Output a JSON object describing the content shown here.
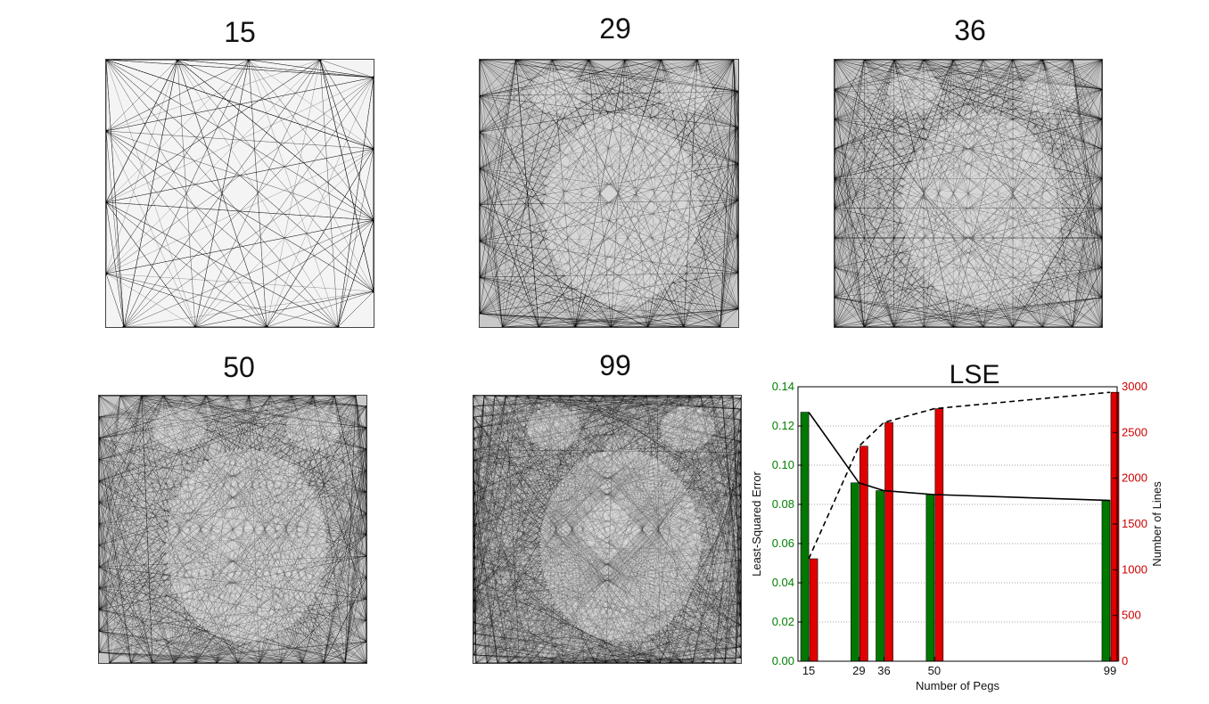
{
  "panels": [
    {
      "title": "15",
      "pegs": 15
    },
    {
      "title": "29",
      "pegs": 29
    },
    {
      "title": "36",
      "pegs": 36
    },
    {
      "title": "50",
      "pegs": 50
    },
    {
      "title": "99",
      "pegs": 99
    }
  ],
  "colors": {
    "lse_bar": "#007800",
    "lines_bar": "#e00000",
    "left_axis": "#008000",
    "right_axis": "#cc0000"
  },
  "chart_data": {
    "type": "bar",
    "title": "LSE",
    "xlabel": "Number of Pegs",
    "ylabel_left": "Least-Squared Error",
    "ylabel_right": "Number of Lines",
    "x": [
      15,
      29,
      36,
      50,
      99
    ],
    "x_tick_labels": [
      "15",
      "29",
      "36",
      "50",
      "99"
    ],
    "xlim": [
      12,
      101
    ],
    "ylim_left": [
      0,
      0.14
    ],
    "ylim_right": [
      0,
      3000
    ],
    "y_ticks_left": [
      "0.00",
      "0.02",
      "0.04",
      "0.06",
      "0.08",
      "0.10",
      "0.12",
      "0.14"
    ],
    "y_ticks_right": [
      "0",
      "500",
      "1000",
      "1500",
      "2000",
      "2500",
      "3000"
    ],
    "grid": "horizontal-dotted",
    "series": [
      {
        "values": [
          0.127,
          0.091,
          0.087,
          0.085,
          0.082
        ],
        "axis": "left",
        "kind": "bar+solid-line"
      },
      {
        "values": [
          1120,
          2350,
          2610,
          2760,
          2940
        ],
        "axis": "right",
        "kind": "bar+dashed-line"
      }
    ]
  }
}
